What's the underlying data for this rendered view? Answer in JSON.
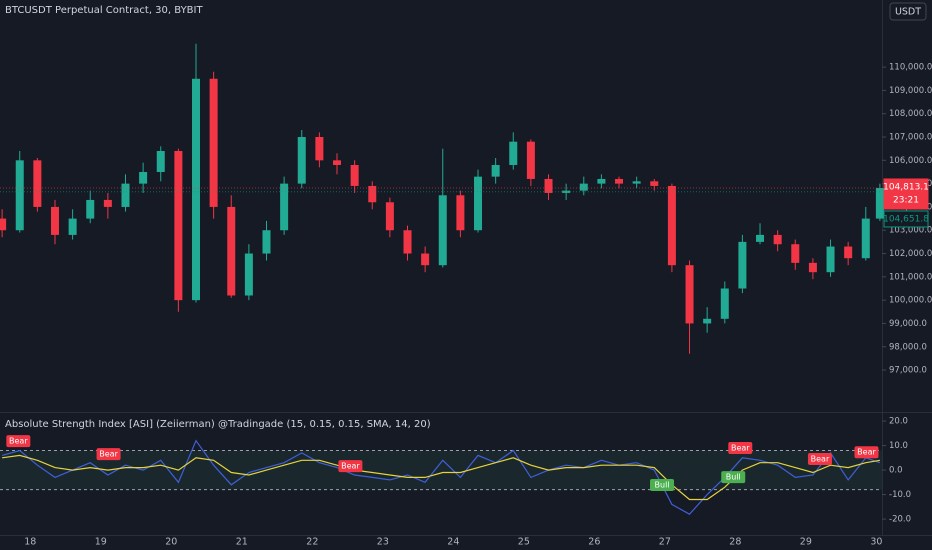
{
  "chart_data": [
    {
      "type": "candlestick",
      "title": "BTCUSDT Perpetual Contract, 30, BYBIT",
      "currency": "USDT",
      "countdown": "23:21",
      "up_color": "#22ab94",
      "down_color": "#f23645",
      "x": [
        17.6,
        17.85,
        18.1,
        18.35,
        18.6,
        18.85,
        19.1,
        19.35,
        19.6,
        19.85,
        20.1,
        20.35,
        20.6,
        20.85,
        21.1,
        21.35,
        21.6,
        21.85,
        22.1,
        22.35,
        22.6,
        22.85,
        23.1,
        23.35,
        23.6,
        23.85,
        24.1,
        24.35,
        24.6,
        24.85,
        25.1,
        25.35,
        25.6,
        25.85,
        26.1,
        26.35,
        26.6,
        26.85,
        27.1,
        27.35,
        27.6,
        27.85,
        28.1,
        28.35,
        28.6,
        28.85,
        29.1,
        29.35,
        29.6,
        29.85,
        30.05
      ],
      "open": [
        103500,
        103000,
        106000,
        104000,
        102800,
        103500,
        104300,
        104000,
        105000,
        105500,
        106400,
        100000,
        109500,
        104000,
        100200,
        102000,
        103000,
        105000,
        107000,
        106000,
        105800,
        104900,
        104200,
        103000,
        102000,
        101500,
        104500,
        103000,
        105300,
        105800,
        106800,
        105200,
        104600,
        104700,
        105000,
        105200,
        105000,
        105100,
        104900,
        101500,
        99000,
        99200,
        100500,
        102500,
        102800,
        102400,
        101600,
        101200,
        102300,
        101800,
        103500
      ],
      "high": [
        103900,
        106400,
        106100,
        104300,
        103900,
        104700,
        104600,
        105400,
        105900,
        106600,
        106500,
        111000,
        109800,
        104500,
        102400,
        103400,
        105300,
        107300,
        107200,
        106300,
        106000,
        105100,
        104400,
        103200,
        102300,
        106500,
        104700,
        105600,
        106100,
        107200,
        106900,
        105400,
        105000,
        105300,
        105400,
        105300,
        105300,
        105200,
        105000,
        101700,
        99700,
        100800,
        102800,
        103300,
        103000,
        102600,
        101800,
        102600,
        102500,
        104000,
        105000
      ],
      "low": [
        102700,
        102900,
        103800,
        102400,
        102600,
        103300,
        103500,
        103800,
        104600,
        105100,
        99500,
        99900,
        103500,
        100100,
        100000,
        101700,
        102800,
        104800,
        105700,
        105400,
        104600,
        103900,
        102700,
        101700,
        101200,
        101400,
        102700,
        102900,
        105000,
        105600,
        104900,
        104300,
        104300,
        104500,
        104800,
        104800,
        104800,
        104700,
        101200,
        97700,
        98600,
        99000,
        100300,
        102400,
        102100,
        101300,
        100900,
        101000,
        101500,
        101700,
        103400
      ],
      "close": [
        103000,
        106000,
        104000,
        102800,
        103500,
        104300,
        104000,
        105000,
        105500,
        106400,
        100000,
        109500,
        104000,
        100200,
        102000,
        103000,
        105000,
        107000,
        106000,
        105800,
        104900,
        104200,
        103000,
        102000,
        101500,
        104500,
        103000,
        105300,
        105800,
        106800,
        105200,
        104600,
        104700,
        105000,
        105200,
        105000,
        105100,
        104900,
        101500,
        99000,
        99200,
        100500,
        102500,
        102800,
        102400,
        101600,
        101200,
        102300,
        101800,
        103500,
        104813.1
      ],
      "price_labels": [
        {
          "value": 104813.1,
          "label": "104,813.1",
          "color": "#f23645"
        },
        {
          "value": 104651.8,
          "label": "104,651.8",
          "color": "#089981"
        }
      ],
      "xlim": [
        17.57,
        30.08
      ],
      "ylim": [
        95200,
        112880
      ],
      "yticks": [
        {
          "value": 97000,
          "label": "97,000.0"
        },
        {
          "value": 98000,
          "label": "98,000.0"
        },
        {
          "value": 99000,
          "label": "99,000.0"
        },
        {
          "value": 100000,
          "label": "100,000.0"
        },
        {
          "value": 101000,
          "label": "101,000.0"
        },
        {
          "value": 102000,
          "label": "102,000.0"
        },
        {
          "value": 103000,
          "label": "103,000.0"
        },
        {
          "value": 104000,
          "label": "104,000.0"
        },
        {
          "value": 105000,
          "label": "105,000.0"
        },
        {
          "value": 106000,
          "label": "106,000.0"
        },
        {
          "value": 107000,
          "label": "107,000.0"
        },
        {
          "value": 108000,
          "label": "108,000.0"
        },
        {
          "value": 109000,
          "label": "109,000.0"
        },
        {
          "value": 110000,
          "label": "110,000.0"
        }
      ]
    },
    {
      "type": "line",
      "title": "Absolute Strength Index [ASI] (Zeiierman) @Tradingade (15, 0.15, 0.15, SMA, 14, 20)",
      "x": [
        17.6,
        17.85,
        18.1,
        18.35,
        18.6,
        18.85,
        19.1,
        19.35,
        19.6,
        19.85,
        20.1,
        20.35,
        20.6,
        20.85,
        21.1,
        21.35,
        21.6,
        21.85,
        22.1,
        22.35,
        22.6,
        22.85,
        23.1,
        23.35,
        23.6,
        23.85,
        24.1,
        24.35,
        24.6,
        24.85,
        25.1,
        25.35,
        25.6,
        25.85,
        26.1,
        26.35,
        26.6,
        26.85,
        27.1,
        27.35,
        27.6,
        27.85,
        28.1,
        28.35,
        28.6,
        28.85,
        29.1,
        29.35,
        29.6,
        29.85,
        30.05
      ],
      "series": [
        {
          "color": "#3f5fd8",
          "values": [
            6,
            8,
            2,
            -3,
            0,
            3,
            -2,
            2,
            0,
            4,
            -5,
            12,
            2,
            -6,
            -1,
            1,
            3,
            7,
            3,
            1,
            -2,
            -3,
            -4,
            -2,
            -5,
            4,
            -3,
            6,
            3,
            8,
            -3,
            0,
            2,
            1,
            4,
            2,
            3,
            0,
            -14,
            -18,
            -10,
            -3,
            5,
            4,
            2,
            -3,
            -2,
            7,
            -4,
            5,
            3
          ]
        },
        {
          "color": "#e6d33c",
          "values": [
            5,
            6,
            4,
            1,
            0,
            1,
            0,
            1,
            1,
            2,
            0,
            5,
            4,
            -1,
            -2,
            0,
            2,
            4,
            4,
            2,
            0,
            -1,
            -2,
            -3,
            -3,
            -1,
            -1,
            1,
            3,
            5,
            2,
            0,
            1,
            1,
            2,
            2,
            2,
            1,
            -6,
            -12,
            -12,
            -7,
            0,
            3,
            3,
            1,
            -1,
            2,
            1,
            3,
            4
          ]
        }
      ],
      "bands": [
        8,
        -8
      ],
      "signals": [
        {
          "label": "Bear",
          "x": 17.83,
          "y": 11.8,
          "color": "#f23645"
        },
        {
          "label": "Bear",
          "x": 19.11,
          "y": 6.5,
          "color": "#f23645"
        },
        {
          "label": "Bear",
          "x": 22.54,
          "y": 1.6,
          "color": "#f23645"
        },
        {
          "label": "Bear",
          "x": 28.07,
          "y": 9,
          "color": "#f23645"
        },
        {
          "label": "Bear",
          "x": 29.2,
          "y": 4.5,
          "color": "#f23645"
        },
        {
          "label": "Bear",
          "x": 29.86,
          "y": 7.3,
          "color": "#f23645"
        },
        {
          "label": "Bull",
          "x": 26.96,
          "y": -6.1,
          "color": "#4caf50"
        },
        {
          "label": "Bull",
          "x": 27.97,
          "y": -2.9,
          "color": "#4caf50"
        }
      ],
      "xlim": [
        17.57,
        30.08
      ],
      "ylim": [
        -26.5,
        23.3
      ],
      "xticks": [
        18,
        19,
        20,
        21,
        22,
        23,
        24,
        25,
        26,
        27,
        28,
        29,
        30
      ],
      "yticks": [
        {
          "value": 20,
          "label": "20.0"
        },
        {
          "value": 10,
          "label": "10.0"
        },
        {
          "value": 0,
          "label": "0.0"
        },
        {
          "value": -10,
          "label": "-10.0"
        },
        {
          "value": -20,
          "label": "-20.0"
        }
      ]
    }
  ]
}
